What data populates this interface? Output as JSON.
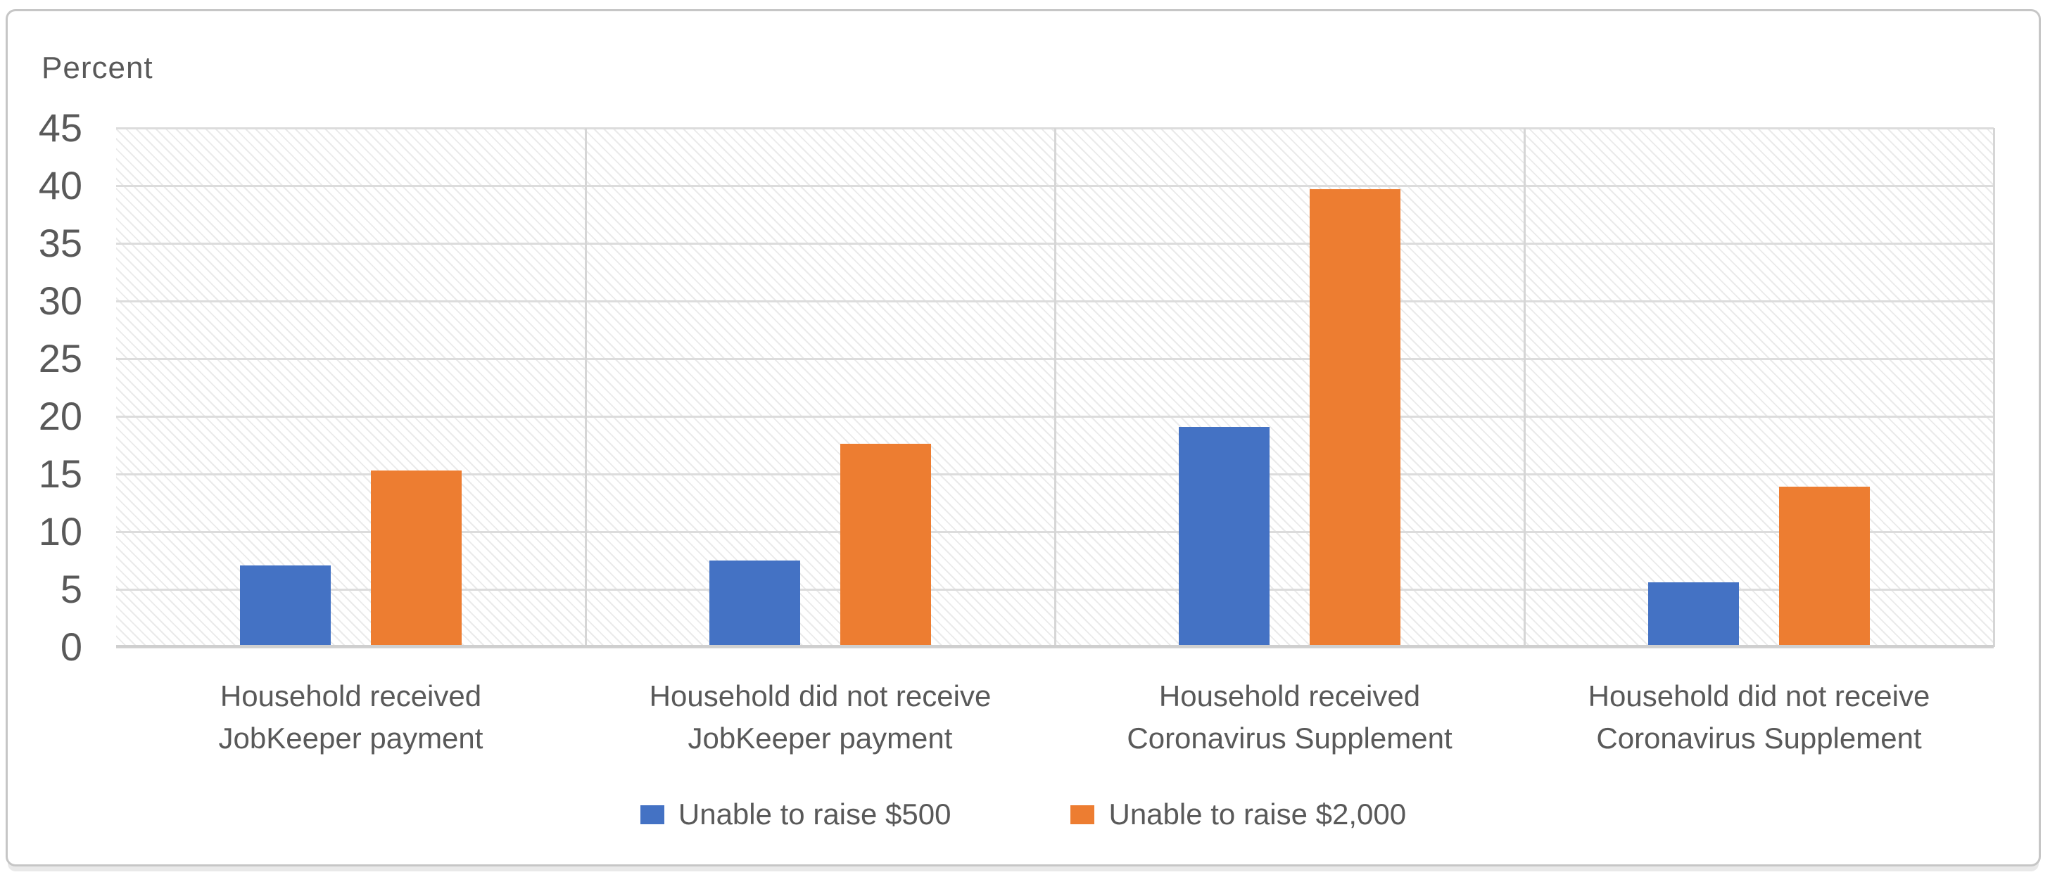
{
  "chart_data": {
    "type": "bar",
    "title": "",
    "ylabel": "Percent",
    "categories": [
      "Household received JobKeeper payment",
      "Household did not receive JobKeeper payment",
      "Household received Coronavirus Supplement",
      "Household did not receive Coronavirus Supplement"
    ],
    "categories_lines": [
      [
        "Household received",
        "JobKeeper payment"
      ],
      [
        "Household did not receive",
        "JobKeeper payment"
      ],
      [
        "Household received",
        "Coronavirus Supplement"
      ],
      [
        "Household did not receive",
        "Coronavirus Supplement"
      ]
    ],
    "series": [
      {
        "name": "Unable to raise $500",
        "color": "#4472C4",
        "values": [
          7.1,
          7.5,
          19.1,
          5.6
        ]
      },
      {
        "name": "Unable to raise $2,000",
        "color": "#ED7D31",
        "values": [
          15.3,
          17.6,
          39.7,
          13.9
        ]
      }
    ],
    "ylim": [
      0,
      45
    ],
    "ytick_step": 5,
    "yticks": [
      45,
      40,
      35,
      30,
      25,
      20,
      15,
      10,
      5,
      0
    ],
    "grid": true,
    "legend_position": "bottom",
    "plot_background": "diagonal-hatch"
  },
  "colors": {
    "series_blue": "#4472C4",
    "series_orange": "#ED7D31",
    "text": "#595959",
    "gridline": "#DCDCDC",
    "frame_border": "#C6C6C6"
  }
}
